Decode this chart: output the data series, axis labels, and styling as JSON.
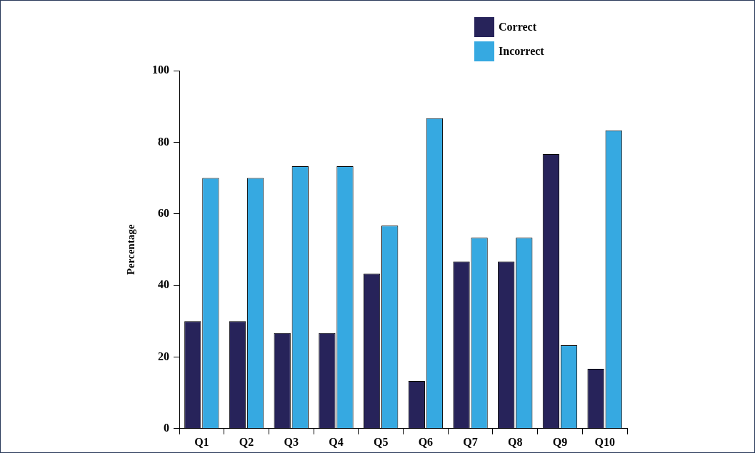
{
  "chart_data": {
    "type": "bar",
    "ylabel": "Percentage",
    "categories": [
      "Q1",
      "Q2",
      "Q3",
      "Q4",
      "Q5",
      "Q6",
      "Q7",
      "Q8",
      "Q9",
      "Q10"
    ],
    "series": [
      {
        "name": "Correct",
        "color": "#27235a",
        "values": [
          30,
          30,
          26.7,
          26.7,
          43.3,
          13.3,
          46.7,
          46.7,
          76.7,
          16.7
        ]
      },
      {
        "name": "Incorrect",
        "color": "#36a9e1",
        "values": [
          70,
          70,
          73.3,
          73.3,
          56.7,
          86.7,
          53.3,
          53.3,
          23.3,
          83.3
        ]
      }
    ],
    "ylim": [
      0,
      100
    ],
    "yticks": [
      0,
      20,
      40,
      60,
      80,
      100
    ],
    "grid": false,
    "legend": "top right"
  }
}
